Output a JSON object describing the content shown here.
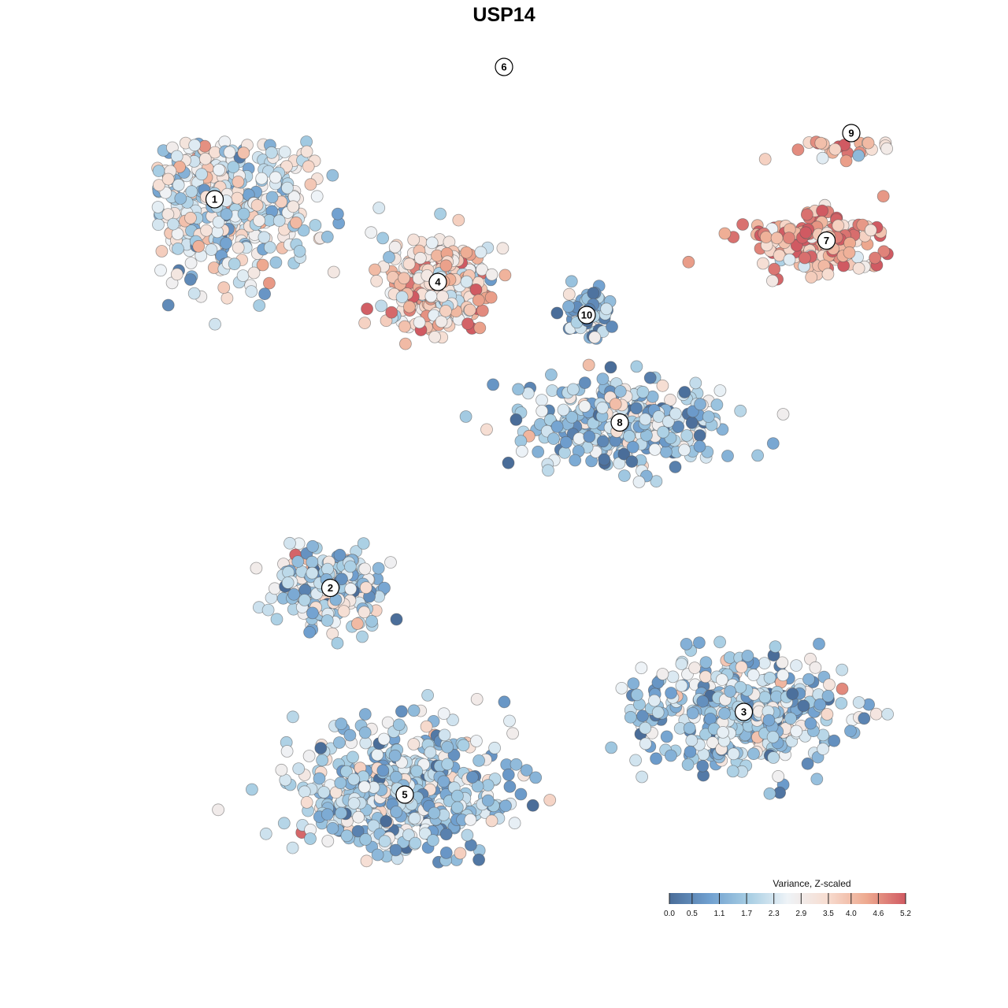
{
  "chart_data": {
    "type": "scatter",
    "title": "USP14",
    "xlabel": "",
    "ylabel": "",
    "grid": false,
    "legend": {
      "title": "Variance, Z-scaled",
      "placement": "bottom-right",
      "range": [
        0.0,
        5.2
      ],
      "ticks": [
        {
          "value": 0.0,
          "label": "0.0"
        },
        {
          "value": 0.5,
          "label": "0.5"
        },
        {
          "value": 1.1,
          "label": "1.1"
        },
        {
          "value": 1.7,
          "label": "1.7"
        },
        {
          "value": 2.3,
          "label": "2.3"
        },
        {
          "value": 2.9,
          "label": "2.9"
        },
        {
          "value": 3.5,
          "label": "3.5"
        },
        {
          "value": 4.0,
          "label": "4.0"
        },
        {
          "value": 4.6,
          "label": "4.6"
        },
        {
          "value": 5.2,
          "label": "5.2"
        }
      ],
      "colors": [
        "#4a6d99",
        "#6f9fcf",
        "#a6cde3",
        "#eef3f7",
        "#f7ddd1",
        "#eeaa90",
        "#d05a62"
      ]
    },
    "clusters": [
      {
        "label": "1",
        "x": -17.5,
        "y": 17.0,
        "mean": 2.4
      },
      {
        "label": "2",
        "x": -10.5,
        "y": -6.5,
        "mean": 2.0
      },
      {
        "label": "3",
        "x": 14.5,
        "y": -14.0,
        "mean": 1.8
      },
      {
        "label": "4",
        "x": -4.0,
        "y": 12.0,
        "mean": 3.4
      },
      {
        "label": "5",
        "x": -6.0,
        "y": -19.0,
        "mean": 1.8
      },
      {
        "label": "6",
        "x": 0.0,
        "y": 25.0,
        "mean": 2.9
      },
      {
        "label": "7",
        "x": 19.5,
        "y": 14.5,
        "mean": 4.2
      },
      {
        "label": "8",
        "x": 7.0,
        "y": 3.5,
        "mean": 1.7
      },
      {
        "label": "9",
        "x": 21.0,
        "y": 21.0,
        "mean": 4.0
      },
      {
        "label": "10",
        "x": 5.0,
        "y": 10.0,
        "mean": 1.3
      }
    ]
  }
}
